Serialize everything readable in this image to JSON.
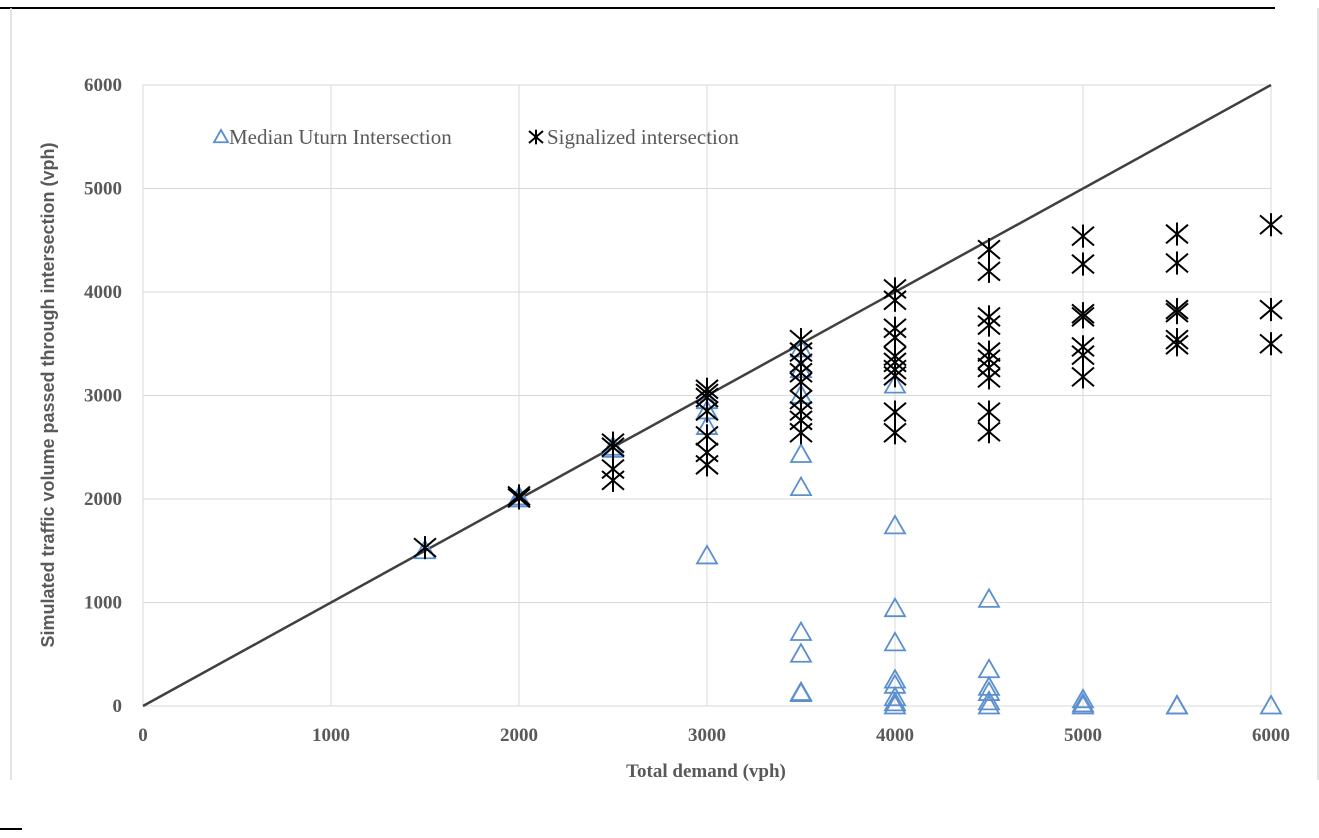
{
  "chart_data": {
    "type": "scatter",
    "title": "",
    "xlabel": "Total demand (vph)",
    "ylabel": "Simulated traffic volume  passed through intersection (vph)",
    "xlim": [
      0,
      6000
    ],
    "ylim": [
      0,
      6000
    ],
    "xticks": [
      "0",
      "1000",
      "2000",
      "3000",
      "4000",
      "5000",
      "6000"
    ],
    "yticks": [
      "0",
      "1000",
      "2000",
      "3000",
      "4000",
      "5000",
      "6000"
    ],
    "grid": true,
    "legend_position": "top-left",
    "reference_line": {
      "x": [
        0,
        6000
      ],
      "y": [
        0,
        6000
      ],
      "color": "#404040"
    },
    "series": [
      {
        "name": "Median Uturn Intersection",
        "marker": "triangle-open",
        "color": "#5b8fd0",
        "points": [
          [
            1500,
            1500
          ],
          [
            2000,
            2000
          ],
          [
            2000,
            2020
          ],
          [
            2500,
            2500
          ],
          [
            2500,
            2480
          ],
          [
            3000,
            2950
          ],
          [
            3000,
            2850
          ],
          [
            3000,
            2700
          ],
          [
            3000,
            1450
          ],
          [
            3500,
            3450
          ],
          [
            3500,
            3250
          ],
          [
            3500,
            3000
          ],
          [
            3500,
            2430
          ],
          [
            3500,
            2110
          ],
          [
            3500,
            710
          ],
          [
            3500,
            500
          ],
          [
            3500,
            130
          ],
          [
            3500,
            120
          ],
          [
            4000,
            3100
          ],
          [
            4000,
            1740
          ],
          [
            4000,
            940
          ],
          [
            4000,
            610
          ],
          [
            4000,
            250
          ],
          [
            4000,
            200
          ],
          [
            4000,
            80
          ],
          [
            4000,
            30
          ],
          [
            4000,
            0
          ],
          [
            4500,
            1030
          ],
          [
            4500,
            350
          ],
          [
            4500,
            180
          ],
          [
            4500,
            130
          ],
          [
            4500,
            40
          ],
          [
            4500,
            0
          ],
          [
            5000,
            60
          ],
          [
            5000,
            20
          ],
          [
            5000,
            0
          ],
          [
            5500,
            0
          ],
          [
            5500,
            0
          ],
          [
            6000,
            0
          ]
        ]
      },
      {
        "name": "Signalized intersection",
        "marker": "asterisk",
        "color": "#000000",
        "points": [
          [
            1500,
            1530
          ],
          [
            2000,
            2030
          ],
          [
            2000,
            2010
          ],
          [
            2500,
            2540
          ],
          [
            2500,
            2500
          ],
          [
            2500,
            2290
          ],
          [
            2500,
            2180
          ],
          [
            3000,
            3060
          ],
          [
            3000,
            3020
          ],
          [
            3000,
            2980
          ],
          [
            3000,
            2850
          ],
          [
            3000,
            2610
          ],
          [
            3000,
            2450
          ],
          [
            3000,
            2330
          ],
          [
            3500,
            3540
          ],
          [
            3500,
            3420
          ],
          [
            3500,
            3310
          ],
          [
            3500,
            3220
          ],
          [
            3500,
            3130
          ],
          [
            3500,
            2960
          ],
          [
            3500,
            2850
          ],
          [
            3500,
            2760
          ],
          [
            3500,
            2640
          ],
          [
            4000,
            4030
          ],
          [
            4000,
            3920
          ],
          [
            4000,
            3650
          ],
          [
            4000,
            3560
          ],
          [
            4000,
            3380
          ],
          [
            4000,
            3320
          ],
          [
            4000,
            3250
          ],
          [
            4000,
            3190
          ],
          [
            4000,
            2840
          ],
          [
            4000,
            2640
          ],
          [
            4500,
            4410
          ],
          [
            4500,
            4200
          ],
          [
            4500,
            3760
          ],
          [
            4500,
            3680
          ],
          [
            4500,
            3420
          ],
          [
            4500,
            3350
          ],
          [
            4500,
            3270
          ],
          [
            4500,
            3170
          ],
          [
            4500,
            2840
          ],
          [
            4500,
            2650
          ],
          [
            5000,
            4540
          ],
          [
            5000,
            4270
          ],
          [
            5000,
            3790
          ],
          [
            5000,
            3760
          ],
          [
            5000,
            3470
          ],
          [
            5000,
            3390
          ],
          [
            5000,
            3180
          ],
          [
            5500,
            4560
          ],
          [
            5500,
            4280
          ],
          [
            5500,
            3830
          ],
          [
            5500,
            3800
          ],
          [
            5500,
            3540
          ],
          [
            5500,
            3490
          ],
          [
            6000,
            4650
          ],
          [
            6000,
            3830
          ],
          [
            6000,
            3500
          ]
        ]
      }
    ]
  }
}
